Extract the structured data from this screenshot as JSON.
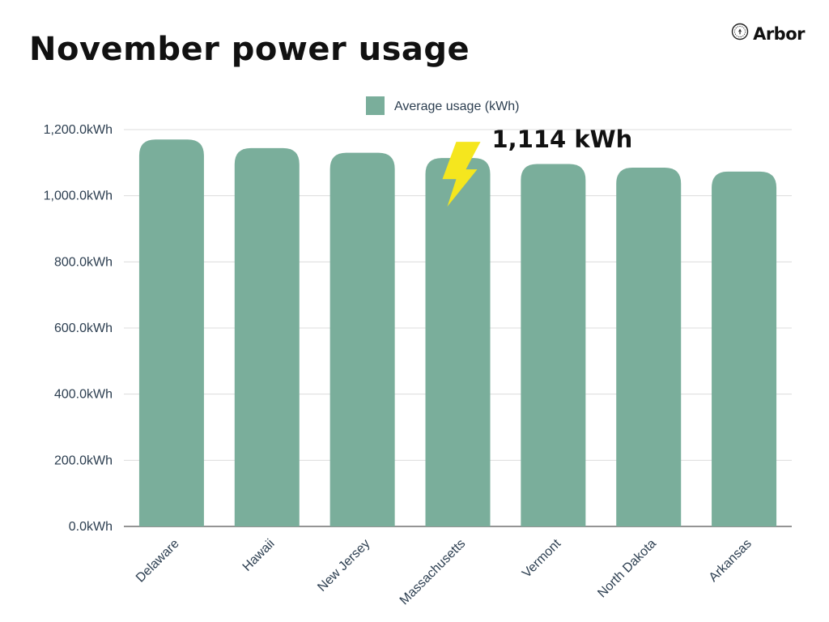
{
  "page": {
    "title": "November power usage",
    "brand": "Arbor",
    "brand_icon": "arbor-badge-icon"
  },
  "chart_data": {
    "type": "bar",
    "title": "November power usage",
    "categories": [
      "Delaware",
      "Hawaii",
      "New Jersey",
      "Massachusetts",
      "Vermont",
      "North Dakota",
      "Arkansas"
    ],
    "series": [
      {
        "name": "Average usage (kWh)",
        "values": [
          1170,
          1144,
          1130,
          1114,
          1096,
          1085,
          1073
        ],
        "color": "#7aae9b"
      }
    ],
    "ylim": [
      0,
      1200
    ],
    "yticks": [
      0,
      200,
      400,
      600,
      800,
      1000,
      1200
    ],
    "ytick_labels": [
      "0.0kWh",
      "200.0kWh",
      "400.0kWh",
      "600.0kWh",
      "800.0kWh",
      "1,000.0kWh",
      "1,200.0kWh"
    ],
    "xlabel": "",
    "ylabel": "",
    "grid": true,
    "legend": "top-center",
    "annotations": [
      {
        "category": "Massachusetts",
        "text": "1,114 kWh",
        "icon": "lightning-bolt-icon",
        "icon_color": "#f5e61e"
      }
    ]
  }
}
